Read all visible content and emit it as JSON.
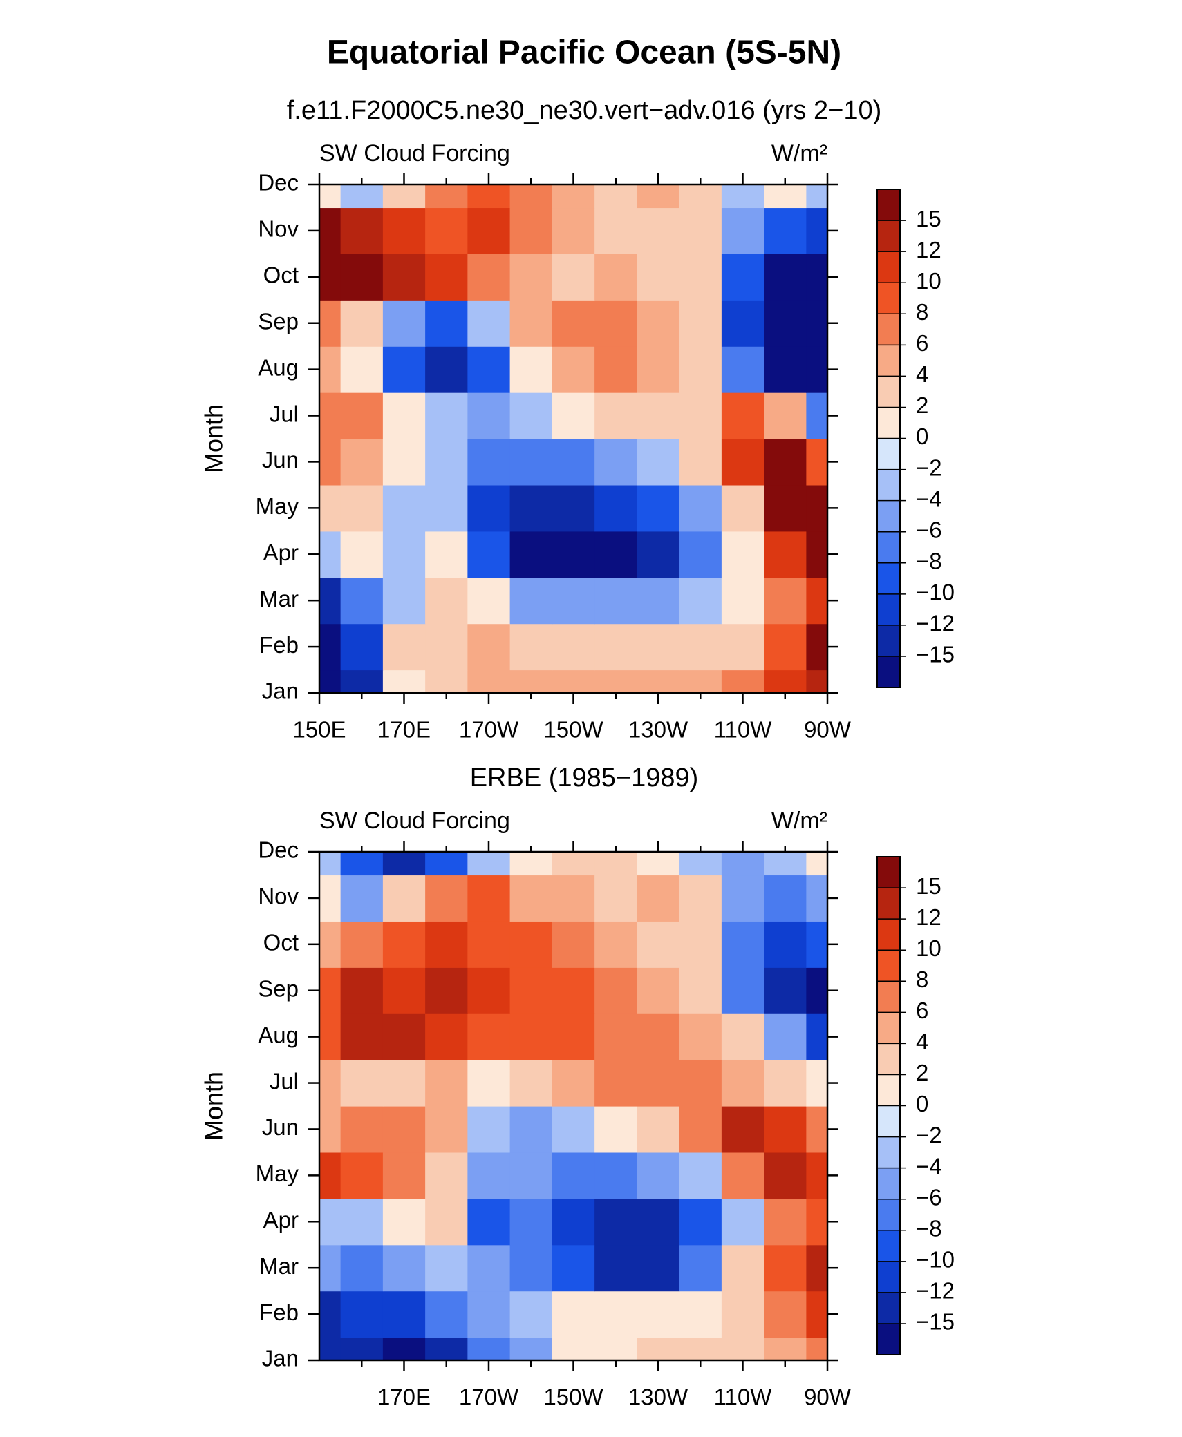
{
  "title": "Equatorial Pacific Ocean (5S-5N)",
  "chart_data": [
    {
      "type": "heatmap",
      "title": "f.e11.F2000C5.ne30_ne30.vert−adv.016 (yrs 2−10)",
      "left_label": "SW Cloud Forcing",
      "right_label": "W/m²",
      "y_label": "Month",
      "categories": [
        "Jan",
        "Feb",
        "Mar",
        "Apr",
        "May",
        "Jun",
        "Jul",
        "Aug",
        "Sep",
        "Oct",
        "Nov",
        "Dec"
      ],
      "x": [
        150,
        160,
        170,
        180,
        190,
        200,
        210,
        220,
        230,
        240,
        250,
        260,
        270
      ],
      "xlim": [
        150,
        270
      ],
      "xticks": [
        {
          "value": 150,
          "label": "150E"
        },
        {
          "value": 170,
          "label": "170E"
        },
        {
          "value": 190,
          "label": "170W"
        },
        {
          "value": 210,
          "label": "150W"
        },
        {
          "value": 230,
          "label": "130W"
        },
        {
          "value": 250,
          "label": "110W"
        },
        {
          "value": 270,
          "label": "90W"
        }
      ],
      "xminorticks": [
        160,
        180,
        200,
        220,
        240,
        260
      ],
      "values": [
        [
          -15,
          -12,
          0,
          2,
          4,
          4,
          4,
          4,
          4,
          4,
          6,
          10,
          12
        ],
        [
          -15,
          -10,
          2,
          3,
          4,
          2,
          2,
          2,
          2,
          2,
          2,
          8,
          15
        ],
        [
          -12,
          -6,
          -2,
          2,
          0,
          -4,
          -4,
          -4,
          -4,
          -2,
          0,
          6,
          10
        ],
        [
          -2,
          0,
          -2,
          0,
          -8,
          -15,
          -15,
          -15,
          -12,
          -6,
          0,
          10,
          15
        ],
        [
          2,
          2,
          -2,
          -2,
          -10,
          -12,
          -12,
          -10,
          -8,
          -4,
          2,
          15,
          15
        ],
        [
          6,
          4,
          0,
          -2,
          -6,
          -6,
          -6,
          -4,
          -2,
          2,
          10,
          15,
          8
        ],
        [
          6,
          6,
          0,
          -2,
          -4,
          -2,
          0,
          2,
          2,
          2,
          8,
          4,
          -6
        ],
        [
          4,
          0,
          -8,
          -12,
          -8,
          0,
          4,
          6,
          4,
          2,
          -6,
          -15,
          -15
        ],
        [
          6,
          2,
          -4,
          -8,
          -2,
          4,
          6,
          6,
          4,
          2,
          -10,
          -15,
          -15
        ],
        [
          15,
          15,
          12,
          10,
          6,
          4,
          2,
          4,
          2,
          2,
          -8,
          -15,
          -15
        ],
        [
          15,
          12,
          10,
          8,
          10,
          6,
          4,
          2,
          2,
          2,
          -4,
          -8,
          -10
        ],
        [
          0,
          -2,
          2,
          6,
          8,
          6,
          4,
          2,
          4,
          2,
          -2,
          0,
          -2
        ]
      ],
      "levels": [
        {
          "value": -15,
          "label": "−15"
        },
        {
          "value": -12,
          "label": "−12"
        },
        {
          "value": -10,
          "label": "−10"
        },
        {
          "value": -8,
          "label": "−8"
        },
        {
          "value": -6,
          "label": "−6"
        },
        {
          "value": -4,
          "label": "−4"
        },
        {
          "value": -2,
          "label": "−2"
        },
        0,
        2,
        4,
        6,
        8,
        10,
        12,
        15
      ],
      "colors": [
        "#0a0f80",
        "#0d2aa6",
        "#0f3fd0",
        "#1a55e8",
        "#4a7bef",
        "#7b9ff3",
        "#a6c0f7",
        "#d6e6fb",
        "#fde8d8",
        "#f9ccb3",
        "#f7aa86",
        "#f27d52",
        "#ef5425",
        "#dc3812",
        "#b62510",
        "#840b0b"
      ]
    },
    {
      "type": "heatmap",
      "title": "ERBE (1985−1989)",
      "left_label": "SW Cloud Forcing",
      "right_label": "W/m²",
      "y_label": "Month",
      "categories": [
        "Jan",
        "Feb",
        "Mar",
        "Apr",
        "May",
        "Jun",
        "Jul",
        "Aug",
        "Sep",
        "Oct",
        "Nov",
        "Dec"
      ],
      "x": [
        150,
        160,
        170,
        180,
        190,
        200,
        210,
        220,
        230,
        240,
        250,
        260,
        270
      ],
      "xlim": [
        150,
        270
      ],
      "xticks": [
        {
          "value": 170,
          "label": "170E"
        },
        {
          "value": 190,
          "label": "170W"
        },
        {
          "value": 210,
          "label": "150W"
        },
        {
          "value": 230,
          "label": "130W"
        },
        {
          "value": 250,
          "label": "110W"
        },
        {
          "value": 270,
          "label": "90W"
        }
      ],
      "xminorticks": [
        160,
        180,
        200,
        220,
        240,
        260
      ],
      "values": [
        [
          -12,
          -12,
          -15,
          -12,
          -6,
          -4,
          0,
          0,
          2,
          2,
          2,
          4,
          6
        ],
        [
          -12,
          -10,
          -10,
          -6,
          -4,
          -2,
          0,
          0,
          0,
          0,
          2,
          6,
          10
        ],
        [
          -4,
          -6,
          -4,
          -2,
          -4,
          -6,
          -8,
          -12,
          -12,
          -6,
          2,
          8,
          12
        ],
        [
          -2,
          -2,
          0,
          2,
          -8,
          -6,
          -10,
          -12,
          -12,
          -8,
          -2,
          6,
          8
        ],
        [
          10,
          8,
          6,
          2,
          -4,
          -4,
          -6,
          -6,
          -4,
          -2,
          6,
          12,
          10
        ],
        [
          4,
          6,
          6,
          4,
          -2,
          -4,
          -2,
          0,
          2,
          6,
          12,
          10,
          6
        ],
        [
          4,
          2,
          2,
          4,
          0,
          2,
          4,
          6,
          6,
          6,
          4,
          2,
          0
        ],
        [
          8,
          12,
          12,
          10,
          8,
          8,
          8,
          6,
          6,
          4,
          2,
          -4,
          -10
        ],
        [
          8,
          12,
          10,
          12,
          10,
          8,
          8,
          6,
          4,
          2,
          -6,
          -12,
          -15
        ],
        [
          4,
          6,
          8,
          10,
          8,
          8,
          6,
          4,
          2,
          2,
          -6,
          -10,
          -8
        ],
        [
          0,
          -4,
          2,
          6,
          8,
          4,
          4,
          2,
          4,
          2,
          -4,
          -6,
          -4
        ],
        [
          -2,
          -8,
          -12,
          -8,
          -2,
          0,
          2,
          2,
          0,
          -2,
          -4,
          -2,
          0
        ]
      ],
      "levels": [
        {
          "value": -15,
          "label": "−15"
        },
        {
          "value": -12,
          "label": "−12"
        },
        {
          "value": -10,
          "label": "−10"
        },
        {
          "value": -8,
          "label": "−8"
        },
        {
          "value": -6,
          "label": "−6"
        },
        {
          "value": -4,
          "label": "−4"
        },
        {
          "value": -2,
          "label": "−2"
        },
        0,
        2,
        4,
        6,
        8,
        10,
        12,
        15
      ],
      "colors": [
        "#0a0f80",
        "#0d2aa6",
        "#0f3fd0",
        "#1a55e8",
        "#4a7bef",
        "#7b9ff3",
        "#a6c0f7",
        "#d6e6fb",
        "#fde8d8",
        "#f9ccb3",
        "#f7aa86",
        "#f27d52",
        "#ef5425",
        "#dc3812",
        "#b62510",
        "#840b0b"
      ]
    }
  ]
}
